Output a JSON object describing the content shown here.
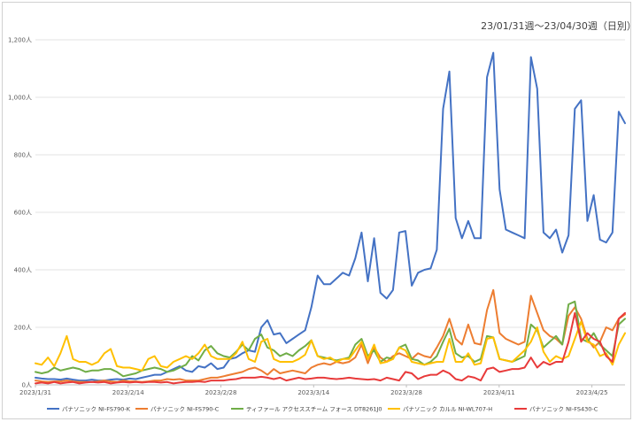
{
  "chart_data": {
    "type": "line",
    "title": "23/01/31週～23/04/30週（日別）",
    "xlabel": "",
    "ylabel": "",
    "ylim": [
      0,
      1200
    ],
    "y_ticks": [
      0,
      200,
      400,
      600,
      800,
      1000,
      1200
    ],
    "y_tick_labels": [
      "0人",
      "200人",
      "400人",
      "600人",
      "800人",
      "1,000人",
      "1,200人"
    ],
    "x_tick_labels": [
      "2023/1/31",
      "2023/2/14",
      "2023/2/28",
      "2023/3/14",
      "2023/3/28",
      "2023/4/11",
      "2023/4/25"
    ],
    "x_tick_days": [
      0,
      14,
      28,
      42,
      56,
      70,
      84
    ],
    "x_range": [
      0,
      89
    ],
    "grid": true,
    "legend_position": "bottom",
    "series": [
      {
        "name": "パナソニック NI-FS790-K",
        "color": "#4472c4",
        "values": [
          25,
          22,
          20,
          20,
          18,
          22,
          18,
          15,
          15,
          18,
          15,
          15,
          18,
          20,
          18,
          22,
          20,
          25,
          30,
          35,
          35,
          45,
          55,
          65,
          50,
          45,
          65,
          60,
          75,
          55,
          60,
          90,
          95,
          110,
          120,
          115,
          200,
          225,
          175,
          180,
          145,
          160,
          175,
          190,
          270,
          380,
          350,
          350,
          370,
          390,
          380,
          440,
          530,
          360,
          510,
          320,
          300,
          330,
          530,
          535,
          345,
          390,
          400,
          405,
          470,
          960,
          1090,
          580,
          510,
          570,
          510,
          510,
          1070,
          1155,
          680,
          540,
          530,
          520,
          510,
          1140,
          1030,
          530,
          510,
          540,
          460,
          520,
          960,
          990,
          570,
          660,
          505,
          495,
          530,
          950,
          910
        ]
      },
      {
        "name": "パナソニック NI-FS790-C",
        "color": "#ed7d31",
        "values": [
          15,
          12,
          10,
          12,
          12,
          15,
          12,
          10,
          10,
          10,
          12,
          15,
          12,
          10,
          15,
          12,
          12,
          10,
          12,
          15,
          15,
          20,
          18,
          20,
          15,
          15,
          15,
          20,
          25,
          25,
          30,
          35,
          40,
          45,
          55,
          60,
          50,
          35,
          55,
          40,
          45,
          50,
          45,
          40,
          60,
          70,
          75,
          70,
          80,
          75,
          80,
          95,
          140,
          75,
          130,
          95,
          80,
          100,
          110,
          100,
          90,
          110,
          100,
          95,
          130,
          170,
          230,
          160,
          140,
          210,
          145,
          140,
          260,
          330,
          180,
          160,
          150,
          140,
          150,
          310,
          250,
          190,
          170,
          160,
          140,
          240,
          270,
          230,
          160,
          130,
          150,
          200,
          190,
          230,
          245
        ]
      },
      {
        "name": "ティファール アクセススチーム フォース DT8261J0",
        "color": "#70ad47",
        "values": [
          45,
          40,
          45,
          60,
          50,
          55,
          60,
          55,
          45,
          50,
          50,
          55,
          55,
          45,
          30,
          35,
          40,
          50,
          55,
          60,
          55,
          45,
          50,
          60,
          70,
          100,
          85,
          120,
          135,
          110,
          100,
          95,
          115,
          140,
          120,
          160,
          175,
          130,
          120,
          100,
          110,
          100,
          120,
          135,
          155,
          100,
          95,
          90,
          85,
          90,
          95,
          140,
          160,
          100,
          120,
          80,
          95,
          90,
          130,
          140,
          90,
          85,
          70,
          80,
          100,
          150,
          195,
          110,
          95,
          100,
          80,
          90,
          170,
          165,
          90,
          85,
          80,
          90,
          100,
          210,
          190,
          130,
          150,
          170,
          140,
          280,
          290,
          160,
          150,
          180,
          140,
          120,
          100,
          210,
          230
        ]
      },
      {
        "name": "パナソニック カルル NI-WL707-H",
        "color": "#ffc000",
        "values": [
          75,
          70,
          95,
          65,
          110,
          170,
          90,
          80,
          80,
          70,
          80,
          110,
          125,
          65,
          60,
          60,
          55,
          50,
          90,
          100,
          65,
          60,
          80,
          90,
          100,
          90,
          110,
          140,
          100,
          90,
          90,
          90,
          110,
          150,
          90,
          80,
          150,
          160,
          90,
          80,
          80,
          80,
          90,
          105,
          155,
          100,
          90,
          95,
          80,
          90,
          90,
          120,
          150,
          90,
          140,
          75,
          80,
          90,
          130,
          120,
          80,
          75,
          70,
          75,
          80,
          80,
          160,
          80,
          80,
          110,
          70,
          75,
          160,
          165,
          90,
          85,
          80,
          100,
          120,
          150,
          200,
          115,
          80,
          100,
          90,
          100,
          160,
          220,
          150,
          140,
          100,
          110,
          70,
          140,
          180
        ]
      },
      {
        "name": "パナソニック NI-FS430-C",
        "color": "#e83a3a",
        "values": [
          5,
          8,
          5,
          10,
          5,
          8,
          10,
          5,
          8,
          10,
          8,
          10,
          5,
          8,
          10,
          8,
          10,
          8,
          10,
          10,
          8,
          10,
          5,
          8,
          10,
          10,
          12,
          10,
          15,
          15,
          15,
          18,
          20,
          25,
          25,
          25,
          28,
          25,
          20,
          25,
          15,
          20,
          25,
          20,
          22,
          25,
          25,
          22,
          20,
          22,
          25,
          22,
          20,
          18,
          20,
          15,
          25,
          20,
          15,
          45,
          40,
          20,
          30,
          35,
          35,
          50,
          40,
          20,
          15,
          30,
          25,
          15,
          55,
          60,
          45,
          50,
          55,
          55,
          60,
          95,
          60,
          80,
          70,
          80,
          80,
          150,
          250,
          150,
          180,
          160,
          150,
          100,
          80,
          230,
          250
        ]
      }
    ]
  }
}
